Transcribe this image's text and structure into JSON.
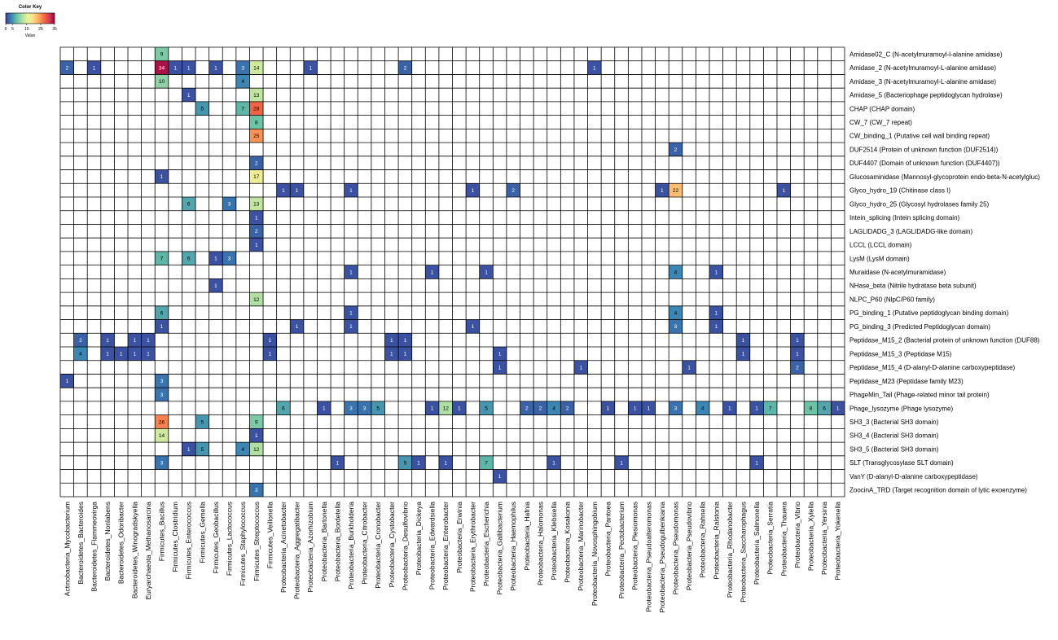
{
  "chart_data": {
    "type": "heatmap",
    "color_key": {
      "title": "Color Key",
      "xlabel": "Value",
      "ticks": [
        0,
        5,
        15,
        25,
        35
      ],
      "range": [
        0,
        35
      ],
      "colors": [
        "#3b3f9a",
        "#3a84b4",
        "#66c2a5",
        "#abdda4",
        "#e6f598",
        "#fee08b",
        "#fdae61",
        "#f46d43",
        "#d53e4f",
        "#9e0142"
      ]
    },
    "rows": [
      "Amidase02_C (N-acetylmuramoyl-l-alanine amidase)",
      "Amidase_2 (N-acetylmuramoyl-L-alanine amidase)",
      "Amidase_3 (N-acetylmuramoyl-L-alanine amidase)",
      "Amidase_5 (Bacteriophage peptidoglycan hydrolase)",
      "CHAP (CHAP domain)",
      "CW_7 (CW_7 repeat)",
      "CW_binding_1 (Putative cell wall binding repeat)",
      "DUF2514 (Protein of unknown function (DUF2514))",
      "DUF4407 (Domain of unknown function (DUF4407))",
      "Glucosaminidase (Mannosyl-glycoprotein endo-beta-N-acetylgluc)",
      "Glyco_hydro_19 (Chitinase class I)",
      "Glyco_hydro_25 (Glycosyl hydrolases family 25)",
      "Intein_splicing (Intein splicing domain)",
      "LAGLIDADG_3 (LAGLIDADG-like domain)",
      "LCCL (LCCL domain)",
      "LysM (LysM domain)",
      "Muraidase (N-acetylmuramidase)",
      "NHase_beta (Nitrile hydratase beta subunit)",
      "NLPC_P60 (NlpC/P60 family)",
      "PG_binding_1 (Putative peptidoglycan binding domain)",
      "PG_binding_3 (Predicted Peptidoglycan domain)",
      "Peptidase_M15_2 (Bacterial protein of unknown function (DUF88)",
      "Peptidase_M15_3 (Peptidase M15)",
      "Peptidase_M15_4 (D-alanyl-D-alanine carboxypeptidase)",
      "Peptidase_M23 (Peptidase family M23)",
      "PhageMin_Tail (Phage-related minor tail protein)",
      "Phage_lysozyme (Phage lysozyme)",
      "SH3_3 (Bacterial SH3 domain)",
      "SH3_4 (Bacterial SH3 domain)",
      "SH3_5 (Bacterial SH3 domain)",
      "SLT (Transglycosylase SLT domain)",
      "VanY (D-alanyl-D-alanine carboxypeptidase)",
      "ZoocinA_TRD (Target recognition domain of lytic exoenzyme)"
    ],
    "columns": [
      "Actinobacteria_Mycobacterium",
      "Bacteroidetes_Bacteroides",
      "Bacteroidetes_Flammeovirga",
      "Bacteroidetes_Nonlabens",
      "Bacteroidetes_Odoribacter",
      "Bacteroidetes_Winogradskyella",
      "Euryarchaeota_Methanosarcina",
      "Firmicutes_Bacillus",
      "Firmicutes_Clostridium",
      "Firmicutes_Enterococcus",
      "Firmicutes_Gemella",
      "Firmicutes_Geobacillus",
      "Firmicutes_Lactococcus",
      "Firmicutes_Staphylococcus",
      "Firmicutes_Streptococcus",
      "Firmicutes_Veillonella",
      "Proteobacteria_Acinetobacter",
      "Proteobacteria_Aggregatibacter",
      "Proteobacteria_Azorhizobium",
      "Proteobacteria_Bartonella",
      "Proteobacteria_Bordetella",
      "Proteobacteria_Burkholderia",
      "Proteobacteria_Citrobacter",
      "Proteobacteria_Cronobacter",
      "Proteobacteria_Cystobacter",
      "Proteobacteria_Desulfovibrio",
      "Proteobacteria_Dickeya",
      "Proteobacteria_Edwardsiella",
      "Proteobacteria_Enterobacter",
      "Proteobacteria_Erwinia",
      "Proteobacteria_Erythrobacter",
      "Proteobacteria_Escherichia",
      "Proteobacteria_Gallibacterium",
      "Proteobacteria_Haemophilus",
      "Proteobacteria_Hafnia",
      "Proteobacteria_Halomonas",
      "Proteobacteria_Klebsiella",
      "Proteobacteria_Kosakonia",
      "Proteobacteria_Marinobacter",
      "Proteobacteria_Novosphingobium",
      "Proteobacteria_Pantoea",
      "Proteobacteria_Pectobacterium",
      "Proteobacteria_Plesiomonas",
      "Proteobacteria_Pseudoalteromonas",
      "Proteobacteria_Pseudogulbenkiania",
      "Proteobacteria_Pseudomonas",
      "Proteobacteria_Pseudovibrio",
      "Proteobacteria_Rahnella",
      "Proteobacteria_Ralstonia",
      "Proteobacteria_Rhodanobacter",
      "Proteobacteria_Saccharophagus",
      "Proteobacteria_Salmonella",
      "Proteobacteria_Serratia",
      "Proteobacteria_Thauera",
      "Proteobacteria_Vibrio",
      "Proteobacteria_Xylella",
      "Proteobacteria_Yersinia",
      "Proteobacteria_Yokenella"
    ],
    "cells": [
      [
        0,
        7,
        9
      ],
      [
        1,
        0,
        2
      ],
      [
        1,
        2,
        1
      ],
      [
        1,
        7,
        34
      ],
      [
        1,
        8,
        1
      ],
      [
        1,
        9,
        1
      ],
      [
        1,
        11,
        1
      ],
      [
        1,
        13,
        3
      ],
      [
        1,
        14,
        14
      ],
      [
        1,
        18,
        1
      ],
      [
        1,
        25,
        2
      ],
      [
        1,
        39,
        1
      ],
      [
        2,
        7,
        10
      ],
      [
        2,
        13,
        4
      ],
      [
        3,
        9,
        1
      ],
      [
        3,
        14,
        13
      ],
      [
        4,
        10,
        5
      ],
      [
        4,
        13,
        7
      ],
      [
        4,
        14,
        28
      ],
      [
        5,
        14,
        8
      ],
      [
        6,
        14,
        25
      ],
      [
        7,
        45,
        2
      ],
      [
        8,
        14,
        2
      ],
      [
        9,
        7,
        1
      ],
      [
        9,
        14,
        17
      ],
      [
        10,
        16,
        1
      ],
      [
        10,
        17,
        1
      ],
      [
        10,
        21,
        1
      ],
      [
        10,
        30,
        1
      ],
      [
        10,
        33,
        2
      ],
      [
        10,
        44,
        1
      ],
      [
        10,
        45,
        22
      ],
      [
        10,
        53,
        1
      ],
      [
        11,
        9,
        6
      ],
      [
        11,
        12,
        3
      ],
      [
        11,
        14,
        13
      ],
      [
        12,
        14,
        1
      ],
      [
        13,
        14,
        2
      ],
      [
        14,
        14,
        1
      ],
      [
        15,
        7,
        7
      ],
      [
        15,
        9,
        6
      ],
      [
        15,
        11,
        1
      ],
      [
        15,
        12,
        3
      ],
      [
        16,
        21,
        1
      ],
      [
        16,
        27,
        1
      ],
      [
        16,
        31,
        1
      ],
      [
        16,
        45,
        4
      ],
      [
        16,
        48,
        1
      ],
      [
        17,
        11,
        1
      ],
      [
        18,
        14,
        12
      ],
      [
        19,
        7,
        6
      ],
      [
        19,
        21,
        1
      ],
      [
        19,
        45,
        4
      ],
      [
        19,
        48,
        1
      ],
      [
        20,
        7,
        1
      ],
      [
        20,
        17,
        1
      ],
      [
        20,
        21,
        1
      ],
      [
        20,
        30,
        1
      ],
      [
        20,
        45,
        3
      ],
      [
        20,
        48,
        1
      ],
      [
        21,
        1,
        2
      ],
      [
        21,
        3,
        1
      ],
      [
        21,
        5,
        1
      ],
      [
        21,
        6,
        1
      ],
      [
        21,
        15,
        1
      ],
      [
        21,
        24,
        1
      ],
      [
        21,
        25,
        1
      ],
      [
        21,
        50,
        1
      ],
      [
        21,
        54,
        1
      ],
      [
        22,
        1,
        4
      ],
      [
        22,
        3,
        1
      ],
      [
        22,
        4,
        1
      ],
      [
        22,
        5,
        1
      ],
      [
        22,
        6,
        1
      ],
      [
        22,
        15,
        1
      ],
      [
        22,
        24,
        1
      ],
      [
        22,
        25,
        1
      ],
      [
        22,
        32,
        1
      ],
      [
        22,
        50,
        1
      ],
      [
        22,
        54,
        1
      ],
      [
        23,
        32,
        1
      ],
      [
        23,
        38,
        1
      ],
      [
        23,
        46,
        1
      ],
      [
        23,
        54,
        2
      ],
      [
        24,
        0,
        1
      ],
      [
        24,
        7,
        3
      ],
      [
        25,
        7,
        3
      ],
      [
        26,
        16,
        6
      ],
      [
        26,
        19,
        1
      ],
      [
        26,
        21,
        3
      ],
      [
        26,
        22,
        3
      ],
      [
        26,
        23,
        5
      ],
      [
        26,
        27,
        1
      ],
      [
        26,
        28,
        12
      ],
      [
        26,
        29,
        1
      ],
      [
        26,
        31,
        5
      ],
      [
        26,
        34,
        2
      ],
      [
        26,
        35,
        2
      ],
      [
        26,
        36,
        4
      ],
      [
        26,
        37,
        2
      ],
      [
        26,
        40,
        1
      ],
      [
        26,
        42,
        1
      ],
      [
        26,
        43,
        1
      ],
      [
        26,
        45,
        3
      ],
      [
        26,
        47,
        4
      ],
      [
        26,
        49,
        1
      ],
      [
        26,
        51,
        1
      ],
      [
        26,
        52,
        7
      ],
      [
        26,
        55,
        8
      ],
      [
        26,
        56,
        6
      ],
      [
        26,
        57,
        1
      ],
      [
        27,
        7,
        26
      ],
      [
        27,
        10,
        5
      ],
      [
        27,
        14,
        9
      ],
      [
        28,
        7,
        14
      ],
      [
        28,
        14,
        1
      ],
      [
        29,
        9,
        1
      ],
      [
        29,
        10,
        5
      ],
      [
        29,
        13,
        4
      ],
      [
        29,
        14,
        12
      ],
      [
        30,
        7,
        3
      ],
      [
        30,
        20,
        1
      ],
      [
        30,
        25,
        5
      ],
      [
        30,
        26,
        1
      ],
      [
        30,
        28,
        1
      ],
      [
        30,
        31,
        7
      ],
      [
        30,
        36,
        1
      ],
      [
        30,
        41,
        1
      ],
      [
        30,
        51,
        1
      ],
      [
        31,
        32,
        1
      ],
      [
        32,
        14,
        3
      ]
    ]
  }
}
